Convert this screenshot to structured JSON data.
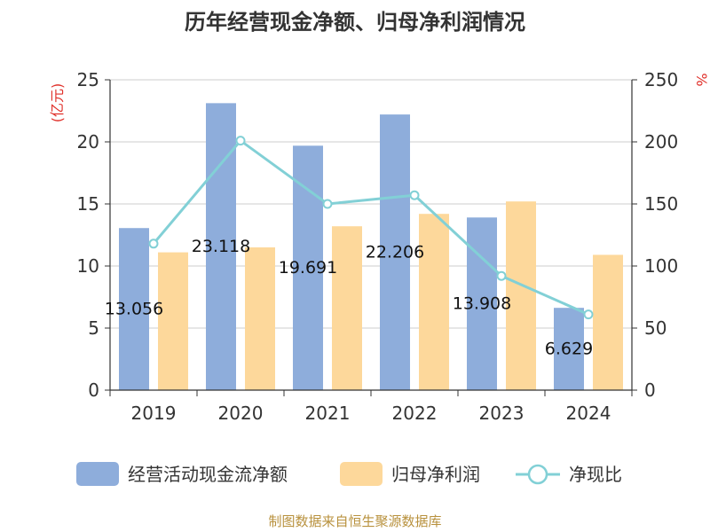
{
  "chart_data": {
    "type": "bar",
    "title": "历年经营现金净额、归母净利润情况",
    "categories": [
      "2019",
      "2020",
      "2021",
      "2022",
      "2023",
      "2024"
    ],
    "left_axis": {
      "unit": "(亿元)",
      "ylim": [
        0,
        25
      ],
      "ticks": [
        "0",
        "5",
        "10",
        "15",
        "20",
        "25"
      ]
    },
    "right_axis": {
      "unit": "%",
      "ylim": [
        0,
        250
      ],
      "ticks": [
        "0",
        "50",
        "100",
        "150",
        "200",
        "250"
      ]
    },
    "series": [
      {
        "name": "经营活动现金流净额",
        "kind": "bar",
        "axis": "left",
        "color": "#8eaddb",
        "values": [
          13.056,
          23.118,
          19.691,
          22.206,
          13.908,
          6.629
        ],
        "labels": [
          "13.056",
          "23.118",
          "19.691",
          "22.206",
          "13.908",
          "6.629"
        ]
      },
      {
        "name": "归母净利润",
        "kind": "bar",
        "axis": "left",
        "color": "#fdd89b",
        "values": [
          11.1,
          11.5,
          13.2,
          14.2,
          15.2,
          10.9
        ]
      },
      {
        "name": "净现比",
        "kind": "line",
        "axis": "right",
        "color": "#82d0d6",
        "values": [
          118,
          201,
          150,
          157,
          92,
          61
        ]
      }
    ],
    "grid": true,
    "legend_position": "bottom",
    "source": "制图数据来自恒生聚源数据库"
  }
}
